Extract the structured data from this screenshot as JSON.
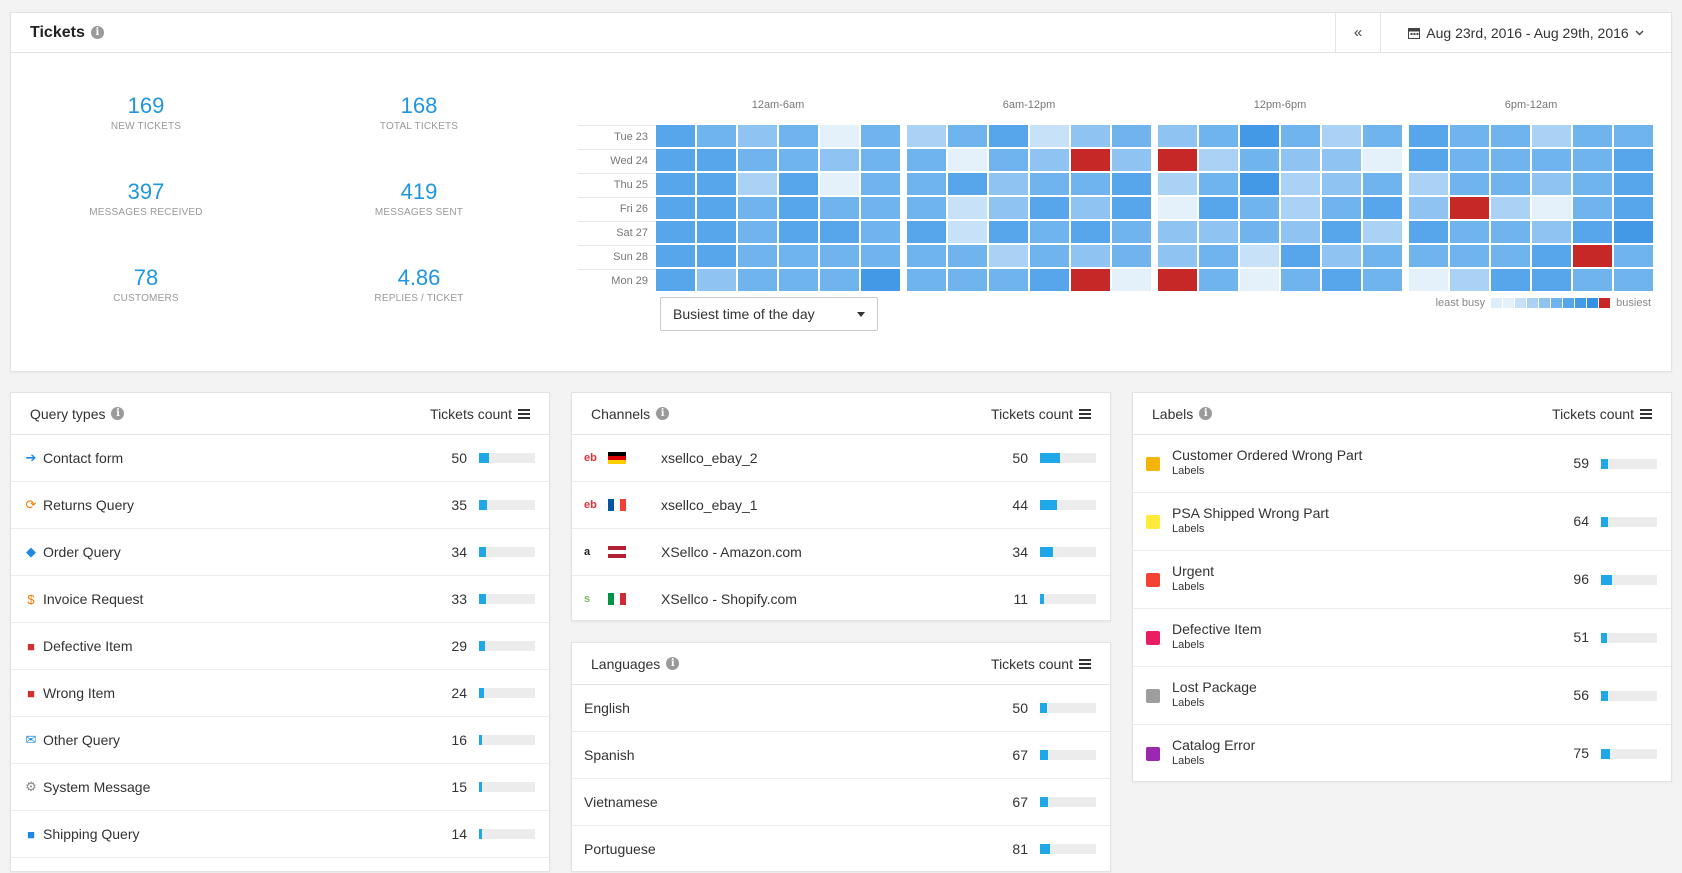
{
  "header": {
    "title": "Tickets",
    "collapse_label": "«",
    "date_range": "Aug 23rd, 2016 - Aug 29th, 2016"
  },
  "stats": [
    {
      "value": "169",
      "label": "NEW TICKETS"
    },
    {
      "value": "168",
      "label": "TOTAL TICKETS"
    },
    {
      "value": "397",
      "label": "MESSAGES RECEIVED"
    },
    {
      "value": "419",
      "label": "MESSAGES SENT"
    },
    {
      "value": "78",
      "label": "CUSTOMERS"
    },
    {
      "value": "4.86",
      "label": "REPLIES / TICKET"
    }
  ],
  "heatmap": {
    "periods": [
      "12am-6am",
      "6am-12pm",
      "12pm-6pm",
      "6pm-12am"
    ],
    "days": [
      "Tue 23",
      "Wed 24",
      "Thu 25",
      "Fri 26",
      "Sat 27",
      "Sun 28",
      "Mon 29"
    ],
    "levels": [
      [
        6,
        5,
        4,
        5,
        1,
        5,
        3,
        5,
        6,
        2,
        4,
        5,
        4,
        5,
        7,
        5,
        3,
        5,
        6,
        5,
        5,
        3,
        5,
        5
      ],
      [
        6,
        6,
        5,
        5,
        4,
        5,
        5,
        1,
        5,
        4,
        9,
        4,
        9,
        3,
        5,
        4,
        4,
        1,
        6,
        5,
        5,
        5,
        5,
        6
      ],
      [
        6,
        6,
        3,
        6,
        1,
        5,
        5,
        6,
        4,
        5,
        5,
        6,
        3,
        5,
        7,
        3,
        4,
        5,
        3,
        5,
        5,
        4,
        5,
        6
      ],
      [
        6,
        6,
        5,
        6,
        5,
        5,
        5,
        2,
        4,
        6,
        4,
        6,
        1,
        6,
        5,
        3,
        5,
        6,
        4,
        9,
        3,
        1,
        5,
        6
      ],
      [
        6,
        6,
        5,
        6,
        6,
        5,
        6,
        2,
        6,
        5,
        6,
        5,
        4,
        4,
        5,
        4,
        6,
        3,
        6,
        5,
        5,
        4,
        6,
        7
      ],
      [
        6,
        6,
        5,
        5,
        5,
        5,
        5,
        5,
        3,
        5,
        4,
        5,
        4,
        5,
        2,
        6,
        4,
        5,
        5,
        5,
        5,
        6,
        9,
        5
      ],
      [
        6,
        4,
        5,
        5,
        5,
        7,
        5,
        5,
        5,
        6,
        9,
        1,
        9,
        5,
        1,
        5,
        6,
        5,
        1,
        3,
        6,
        6,
        5,
        5
      ]
    ],
    "palette": [
      "#ddeefa",
      "#e4f1fb",
      "#c7e1f8",
      "#a9d2f5",
      "#8fc4f2",
      "#70b4ee",
      "#57a5eb",
      "#4499e6",
      "#3391e3",
      "#c62828"
    ],
    "dropdown_label": "Busiest time of the day",
    "legend_least": "least busy",
    "legend_most": "busiest"
  },
  "query_types": {
    "title": "Query types",
    "sort_label": "Tickets count",
    "rows": [
      {
        "label": "Contact form",
        "count": "50",
        "icon": "➔",
        "icon_color": "#1e88e5",
        "fill": 0.18
      },
      {
        "label": "Returns Query",
        "count": "35",
        "icon": "⟳",
        "icon_color": "#f57c00",
        "fill": 0.14
      },
      {
        "label": "Order Query",
        "count": "34",
        "icon": "◆",
        "icon_color": "#1e88e5",
        "fill": 0.13
      },
      {
        "label": "Invoice Request",
        "count": "33",
        "icon": "$",
        "icon_color": "#f57c00",
        "fill": 0.13
      },
      {
        "label": "Defective Item",
        "count": "29",
        "icon": "■",
        "icon_color": "#d32f2f",
        "fill": 0.11
      },
      {
        "label": "Wrong Item",
        "count": "24",
        "icon": "■",
        "icon_color": "#d32f2f",
        "fill": 0.09
      },
      {
        "label": "Other Query",
        "count": "16",
        "icon": "✉",
        "icon_color": "#1e88e5",
        "fill": 0.06
      },
      {
        "label": "System Message",
        "count": "15",
        "icon": "⚙",
        "icon_color": "#888888",
        "fill": 0.06
      },
      {
        "label": "Shipping Query",
        "count": "14",
        "icon": "■",
        "icon_color": "#1e88e5",
        "fill": 0.05
      }
    ]
  },
  "channels": {
    "title": "Channels",
    "sort_label": "Tickets count",
    "rows": [
      {
        "label": "xsellco_ebay_2",
        "count": "50",
        "logo": "eb",
        "logo_color": "#e53238",
        "flag": [
          "#000000",
          "#dd0000",
          "#ffce00"
        ],
        "flag_dir": "column",
        "fill": 0.35
      },
      {
        "label": "xsellco_ebay_1",
        "count": "44",
        "logo": "eb",
        "logo_color": "#e53238",
        "flag": [
          "#0055a4",
          "#ffffff",
          "#ef4135"
        ],
        "flag_dir": "row",
        "fill": 0.31
      },
      {
        "label": "XSellco - Amazon.com",
        "count": "34",
        "logo": "a",
        "logo_color": "#222222",
        "flag": [
          "#b22234",
          "#ffffff",
          "#b22234"
        ],
        "flag_dir": "column",
        "fill": 0.24
      },
      {
        "label": "XSellco - Shopify.com",
        "count": "11",
        "logo": "s",
        "logo_color": "#7ab55c",
        "flag": [
          "#009246",
          "#ffffff",
          "#ce2b37"
        ],
        "flag_dir": "row",
        "fill": 0.08
      }
    ]
  },
  "languages": {
    "title": "Languages",
    "sort_label": "Tickets count",
    "rows": [
      {
        "label": "English",
        "count": "50",
        "fill": 0.12
      },
      {
        "label": "Spanish",
        "count": "67",
        "fill": 0.14
      },
      {
        "label": "Vietnamese",
        "count": "67",
        "fill": 0.14
      },
      {
        "label": "Portuguese",
        "count": "81",
        "fill": 0.17
      }
    ]
  },
  "labels": {
    "title": "Labels",
    "sort_label": "Tickets count",
    "rows": [
      {
        "label": "Customer Ordered Wrong Part",
        "sub": "Labels",
        "count": "59",
        "color": "#f4b400",
        "fill": 0.12
      },
      {
        "label": "PSA Shipped Wrong Part",
        "sub": "Labels",
        "count": "64",
        "color": "#ffeb3b",
        "fill": 0.13
      },
      {
        "label": "Urgent",
        "sub": "Labels",
        "count": "96",
        "color": "#f44336",
        "fill": 0.2
      },
      {
        "label": "Defective Item",
        "sub": "Labels",
        "count": "51",
        "color": "#e91e63",
        "fill": 0.11
      },
      {
        "label": "Lost Package",
        "sub": "Labels",
        "count": "56",
        "color": "#9e9e9e",
        "fill": 0.12
      },
      {
        "label": "Catalog Error",
        "sub": "Labels",
        "count": "75",
        "color": "#9c27b0",
        "fill": 0.16
      }
    ]
  }
}
